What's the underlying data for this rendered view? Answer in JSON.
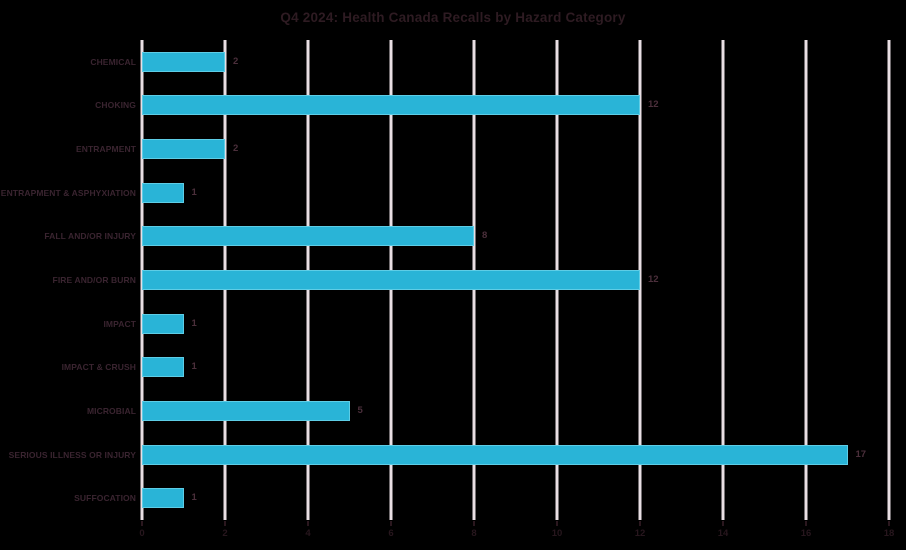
{
  "chart_data": {
    "type": "bar",
    "orientation": "horizontal",
    "title": "Q4 2024: Health Canada Recalls by Hazard Category",
    "categories": [
      "CHEMICAL",
      "CHOKING",
      "ENTRAPMENT",
      "ENTRAPMENT & ASPHYXIATION",
      "FALL AND/OR INJURY",
      "FIRE AND/OR BURN",
      "IMPACT",
      "IMPACT & CRUSH",
      "MICROBIAL",
      "SERIOUS ILLNESS OR INJURY",
      "SUFFOCATION"
    ],
    "values": [
      2,
      12,
      2,
      1,
      8,
      12,
      1,
      1,
      5,
      17,
      1
    ],
    "value_labels_shown": true,
    "xlabel": "",
    "ylabel": "",
    "xlim": [
      0,
      18
    ],
    "x_ticks": [
      0,
      2,
      4,
      6,
      8,
      10,
      12,
      14,
      16,
      18
    ],
    "grid": true,
    "legend": false,
    "colors": {
      "background": "#000000",
      "bar_fill": "#29b4d7",
      "bar_edge": "#5ecde6",
      "gridline": "#e8dee3",
      "title_text": "#2e1b22",
      "category_text": "#3a2430",
      "value_text": "#4b2f3b",
      "tick_text": "#27161d",
      "tick_mark": "#2a171e"
    }
  }
}
